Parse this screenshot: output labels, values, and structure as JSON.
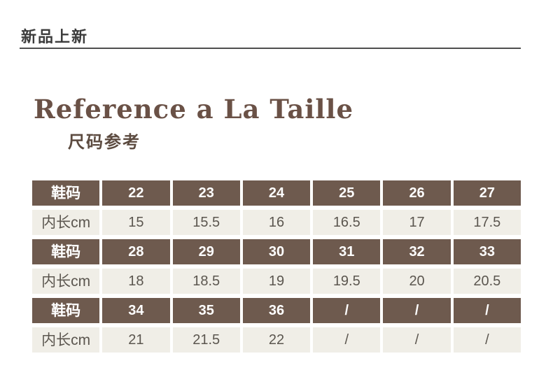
{
  "header": {
    "banner": "新品上新",
    "title": "Reference a La Taille",
    "subtitle": "尺码参考"
  },
  "colors": {
    "header_cell_brown": "#6e5a4e",
    "value_cell_beige": "#f0eee7",
    "title_brown": "#6a5146",
    "subtitle_brown": "#5c4b40",
    "banner_text": "#3c3c3c",
    "rule_gray": "#4e4e4e",
    "value_text": "#5b564f",
    "header_text": "#ffffff"
  },
  "size_table": {
    "row_header_label": "鞋码",
    "row_data_label": "内长cm",
    "groups": [
      {
        "sizes": [
          "22",
          "23",
          "24",
          "25",
          "26",
          "27"
        ],
        "lengths": [
          "15",
          "15.5",
          "16",
          "16.5",
          "17",
          "17.5"
        ]
      },
      {
        "sizes": [
          "28",
          "29",
          "30",
          "31",
          "32",
          "33"
        ],
        "lengths": [
          "18",
          "18.5",
          "19",
          "19.5",
          "20",
          "20.5"
        ]
      },
      {
        "sizes": [
          "34",
          "35",
          "36",
          "/",
          "/",
          "/"
        ],
        "lengths": [
          "21",
          "21.5",
          "22",
          "/",
          "/",
          "/"
        ]
      }
    ]
  }
}
